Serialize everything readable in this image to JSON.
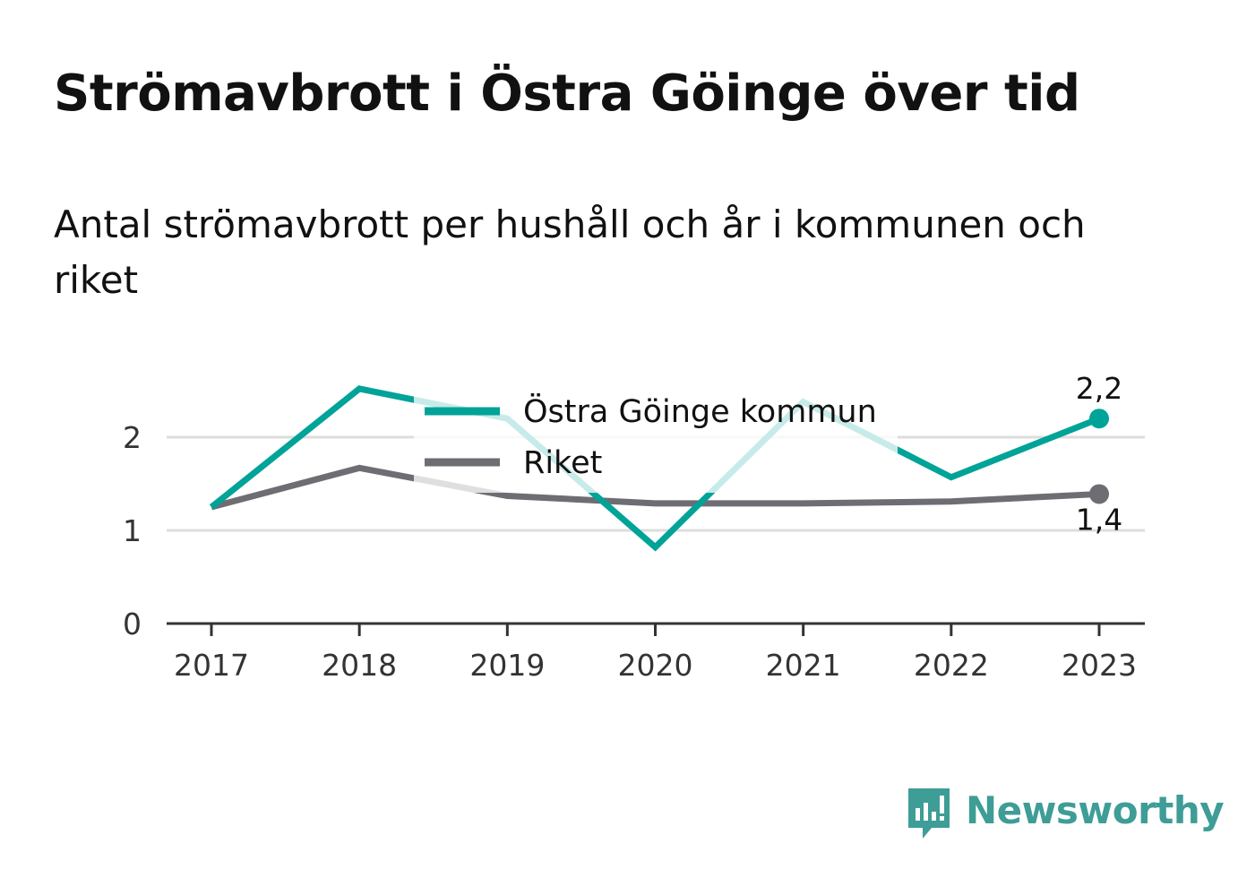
{
  "title": "Strömavbrott i Östra Göinge över tid",
  "subtitle": "Antal strömavbrott per hushåll och år i kommunen och riket",
  "brand": {
    "name": "Newsworthy",
    "color": "#3e9d96",
    "icon": "newsworthy-logo-icon"
  },
  "chart_data": {
    "type": "line",
    "x": [
      "2017",
      "2018",
      "2019",
      "2020",
      "2021",
      "2022",
      "2023"
    ],
    "series": [
      {
        "name": "Östra Göinge kommun",
        "color": "#00a398",
        "values": [
          1.25,
          2.52,
          2.2,
          0.82,
          2.38,
          1.57,
          2.2
        ],
        "end_label": "2,2"
      },
      {
        "name": "Riket",
        "color": "#6e6d73",
        "values": [
          1.25,
          1.67,
          1.37,
          1.29,
          1.29,
          1.31,
          1.39
        ],
        "end_label": "1,4"
      }
    ],
    "yticks": [
      "0",
      "1",
      "2"
    ],
    "ylim": [
      0,
      2.6
    ],
    "grid": true,
    "legend": "top-center"
  }
}
